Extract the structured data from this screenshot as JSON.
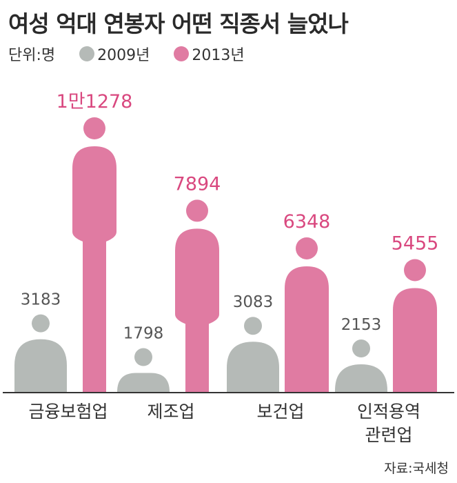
{
  "chart_data": {
    "type": "bar",
    "title": "여성 억대 연봉자 어떤 직종서 늘었나",
    "unit_label": "단위:명",
    "categories": [
      "금융보험업",
      "제조업",
      "보건업",
      "인적용역\n관련업"
    ],
    "series": [
      {
        "name": "2009년",
        "color": "#b5bab7",
        "values": [
          3183,
          1798,
          3083,
          2153
        ],
        "labels": [
          "3183",
          "1798",
          "3083",
          "2153"
        ]
      },
      {
        "name": "2013년",
        "color": "#e07ba2",
        "values": [
          11278,
          7894,
          6348,
          5455
        ],
        "labels": [
          "1만1278",
          "7894",
          "6348",
          "5455"
        ]
      }
    ],
    "source": "자료:국세청"
  }
}
